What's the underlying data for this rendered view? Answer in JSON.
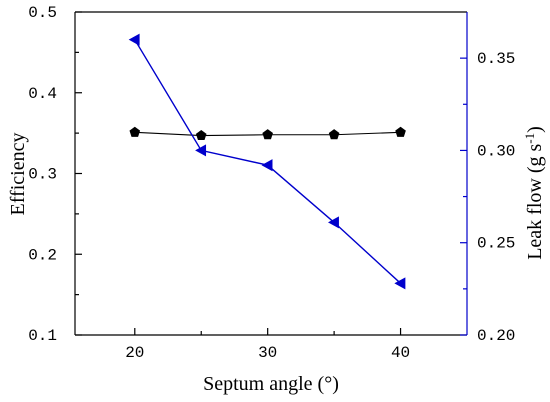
{
  "chart_data": {
    "type": "line",
    "xlabel": "Septum angle (°)",
    "ylabel": "Efficiency",
    "y2label": {
      "text": "Leak flow (g s",
      "superscript": "-1",
      "suffix": ")"
    },
    "xlim": [
      15.5,
      45
    ],
    "ylim": [
      0.1,
      0.5
    ],
    "y2lim": [
      0.2,
      0.375
    ],
    "xticks": [
      20,
      30,
      40
    ],
    "xtick_labels": [
      "20",
      "30",
      "40"
    ],
    "yticks": [
      0.1,
      0.2,
      0.3,
      0.4,
      0.5
    ],
    "ytick_labels": [
      "0.1",
      "0.2",
      "0.3",
      "0.4",
      "0.5"
    ],
    "y2ticks": [
      0.2,
      0.25,
      0.3,
      0.35
    ],
    "y2tick_labels": [
      "0.20",
      "0.25",
      "0.30",
      "0.35"
    ],
    "grid": false,
    "legend": false,
    "right_axis_color": "#0000cc",
    "x": [
      20,
      25,
      30,
      35,
      40
    ],
    "series": [
      {
        "yaxis": 1,
        "marker": "pentagon",
        "color": "#000000",
        "values": [
          0.351,
          0.347,
          0.348,
          0.348,
          0.351
        ]
      },
      {
        "yaxis": 2,
        "marker": "triangle-left",
        "color": "#0000cc",
        "values": [
          0.36,
          0.3,
          0.292,
          0.261,
          0.228
        ]
      }
    ]
  }
}
